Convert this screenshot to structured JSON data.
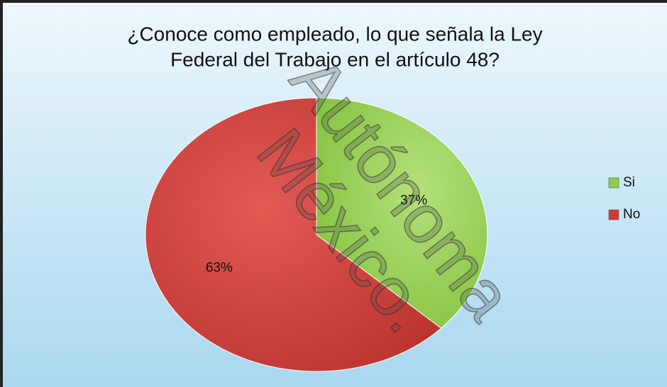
{
  "chart_data": {
    "type": "pie",
    "title": [
      "¿Conoce como empleado, lo que señala la Ley",
      "Federal del Trabajo en el artículo 48?"
    ],
    "categories": [
      "Si",
      "No"
    ],
    "values": [
      37,
      63
    ],
    "value_labels": [
      "37%",
      "63%"
    ],
    "colors": [
      "#8fcc4a",
      "#cf3b36"
    ],
    "legend": "right",
    "watermark": [
      "Autónoma",
      "México."
    ]
  }
}
